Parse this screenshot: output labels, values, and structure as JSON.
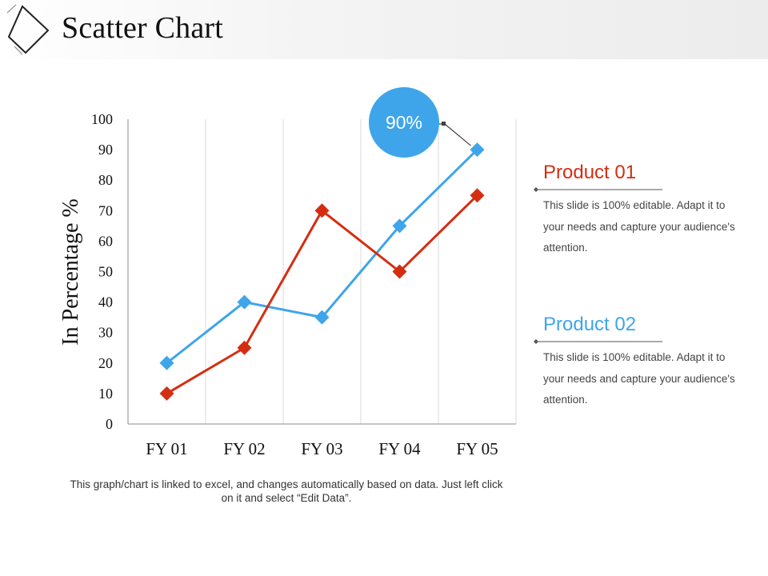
{
  "title": "Scatter Chart",
  "callout_label": "90%",
  "colors": {
    "product1": "#d42e12",
    "product2": "#3ea5ea"
  },
  "chart_data": {
    "type": "line",
    "categories": [
      "FY 01",
      "FY 02",
      "FY 03",
      "FY 04",
      "FY 05"
    ],
    "series": [
      {
        "name": "Product 01",
        "values": [
          10,
          25,
          70,
          50,
          75
        ]
      },
      {
        "name": "Product 02",
        "values": [
          20,
          40,
          35,
          65,
          90
        ]
      }
    ],
    "ylabel": "In Percentage %",
    "ylim": [
      0,
      100
    ],
    "yticks": [
      0,
      10,
      20,
      30,
      40,
      50,
      60,
      70,
      80,
      90,
      100
    ],
    "annotation": {
      "text": "90%",
      "series": "Product 02",
      "category": "FY 05"
    }
  },
  "legend": [
    {
      "title": "Product 01",
      "description": "This slide is 100% editable. Adapt it to your needs and capture your audience's attention."
    },
    {
      "title": "Product 02",
      "description": "This slide is 100% editable. Adapt it to your needs and capture your audience's attention."
    }
  ],
  "footnote": "This graph/chart is linked to excel, and changes automatically based on data. Just left click on it and select “Edit Data”."
}
